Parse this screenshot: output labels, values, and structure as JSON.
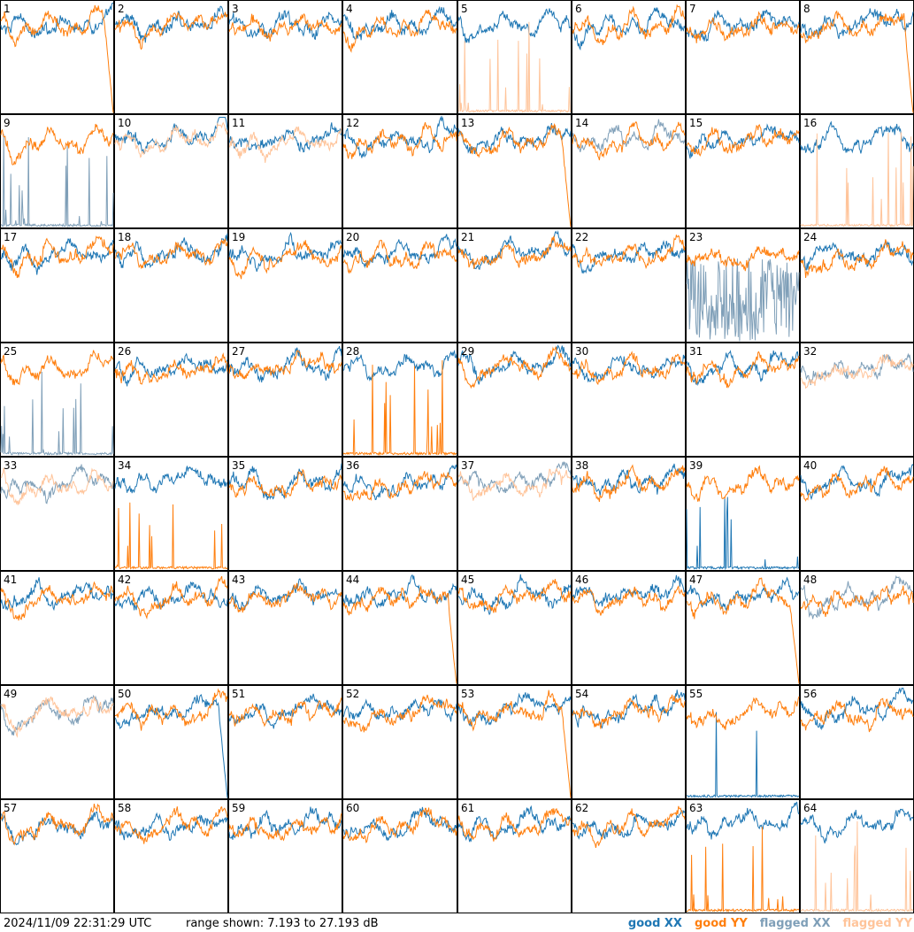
{
  "footer": {
    "timestamp": "2024/11/09 22:31:29 UTC",
    "range_text": "range shown: 7.193 to 27.193 dB"
  },
  "legend": {
    "good_xx": "good XX",
    "good_yy": "good YY",
    "flagged_xx": "flagged XX",
    "flagged_yy": "flagged YY"
  },
  "colors": {
    "good_xx": "#1f77b4",
    "good_yy": "#ff7f0e",
    "flagged_xx": "#7f9fb8",
    "flagged_yy": "#ffc49a"
  },
  "chart_data": {
    "type": "line",
    "layout": "8x8 grid of small multiples",
    "ylim_db": [
      7.193,
      27.193
    ],
    "x_axis": "unlabeled (frequency channel)",
    "panels": [
      {
        "id": "1",
        "xx": "good",
        "yy": "good",
        "yy_note": "drops to floor at right edge"
      },
      {
        "id": "2",
        "xx": "good",
        "yy": "good"
      },
      {
        "id": "3",
        "xx": "good",
        "yy": "good"
      },
      {
        "id": "4",
        "xx": "good",
        "yy": "good"
      },
      {
        "id": "5",
        "xx": "good",
        "yy": "flagged",
        "yy_note": "near floor with spikes"
      },
      {
        "id": "6",
        "xx": "good",
        "yy": "good"
      },
      {
        "id": "7",
        "xx": "good",
        "yy": "good"
      },
      {
        "id": "8",
        "xx": "good",
        "yy": "good",
        "yy_note": "drops to floor at right edge"
      },
      {
        "id": "9",
        "xx": "flagged",
        "yy": "good",
        "xx_note": "near floor with spikes"
      },
      {
        "id": "10",
        "xx": "good",
        "yy": "flagged"
      },
      {
        "id": "11",
        "xx": "good",
        "yy": "flagged"
      },
      {
        "id": "12",
        "xx": "good",
        "yy": "good"
      },
      {
        "id": "13",
        "xx": "good",
        "yy": "good",
        "yy_note": "drops to floor at right edge"
      },
      {
        "id": "14",
        "xx": "flagged",
        "yy": "good"
      },
      {
        "id": "15",
        "xx": "good",
        "yy": "good"
      },
      {
        "id": "16",
        "xx": "good",
        "yy": "flagged",
        "yy_note": "near floor with spikes"
      },
      {
        "id": "17",
        "xx": "good",
        "yy": "good"
      },
      {
        "id": "18",
        "xx": "good",
        "yy": "good"
      },
      {
        "id": "19",
        "xx": "good",
        "yy": "good"
      },
      {
        "id": "20",
        "xx": "good",
        "yy": "good"
      },
      {
        "id": "21",
        "xx": "good",
        "yy": "good"
      },
      {
        "id": "22",
        "xx": "good",
        "yy": "good"
      },
      {
        "id": "23",
        "xx": "flagged",
        "yy": "good",
        "xx_note": "noisy, spans full range"
      },
      {
        "id": "24",
        "xx": "good",
        "yy": "good"
      },
      {
        "id": "25",
        "xx": "flagged",
        "yy": "good",
        "xx_note": "near floor with spike"
      },
      {
        "id": "26",
        "xx": "good",
        "yy": "good"
      },
      {
        "id": "27",
        "xx": "good",
        "yy": "good"
      },
      {
        "id": "28",
        "xx": "good",
        "yy": "good",
        "yy_note": "near floor with spikes"
      },
      {
        "id": "29",
        "xx": "good",
        "yy": "good"
      },
      {
        "id": "30",
        "xx": "good",
        "yy": "good"
      },
      {
        "id": "31",
        "xx": "good",
        "yy": "good"
      },
      {
        "id": "32",
        "xx": "flagged",
        "yy": "flagged"
      },
      {
        "id": "33",
        "xx": "flagged",
        "yy": "flagged"
      },
      {
        "id": "34",
        "xx": "good",
        "yy": "good",
        "yy_note": "near floor with spikes"
      },
      {
        "id": "35",
        "xx": "good",
        "yy": "good"
      },
      {
        "id": "36",
        "xx": "good",
        "yy": "good"
      },
      {
        "id": "37",
        "xx": "flagged",
        "yy": "flagged"
      },
      {
        "id": "38",
        "xx": "good",
        "yy": "good"
      },
      {
        "id": "39",
        "xx": "good",
        "yy": "good",
        "xx_note": "near floor with spikes"
      },
      {
        "id": "40",
        "xx": "good",
        "yy": "good"
      },
      {
        "id": "41",
        "xx": "good",
        "yy": "good"
      },
      {
        "id": "42",
        "xx": "good",
        "yy": "good"
      },
      {
        "id": "43",
        "xx": "good",
        "yy": "good"
      },
      {
        "id": "44",
        "xx": "good",
        "yy": "good",
        "yy_note": "drops to floor at right edge"
      },
      {
        "id": "45",
        "xx": "good",
        "yy": "good"
      },
      {
        "id": "46",
        "xx": "good",
        "yy": "good"
      },
      {
        "id": "47",
        "xx": "good",
        "yy": "good",
        "yy_note": "drops to floor at right edge"
      },
      {
        "id": "48",
        "xx": "flagged",
        "yy": "good"
      },
      {
        "id": "49",
        "xx": "flagged",
        "yy": "flagged"
      },
      {
        "id": "50",
        "xx": "good",
        "yy": "good",
        "xx_note": "drops at right edge"
      },
      {
        "id": "51",
        "xx": "good",
        "yy": "good"
      },
      {
        "id": "52",
        "xx": "good",
        "yy": "good"
      },
      {
        "id": "53",
        "xx": "good",
        "yy": "good",
        "yy_note": "drops to floor at right edge"
      },
      {
        "id": "54",
        "xx": "good",
        "yy": "good"
      },
      {
        "id": "55",
        "xx": "good",
        "yy": "good",
        "xx_note": "near floor with spikes"
      },
      {
        "id": "56",
        "xx": "good",
        "yy": "good"
      },
      {
        "id": "57",
        "xx": "good",
        "yy": "good"
      },
      {
        "id": "58",
        "xx": "good",
        "yy": "good"
      },
      {
        "id": "59",
        "xx": "good",
        "yy": "good"
      },
      {
        "id": "60",
        "xx": "good",
        "yy": "good"
      },
      {
        "id": "61",
        "xx": "good",
        "yy": "good"
      },
      {
        "id": "62",
        "xx": "good",
        "yy": "good"
      },
      {
        "id": "63",
        "xx": "good",
        "yy": "good",
        "yy_note": "near floor with spikes"
      },
      {
        "id": "64",
        "xx": "good",
        "yy": "flagged",
        "yy_note": "near floor with spike"
      }
    ]
  }
}
